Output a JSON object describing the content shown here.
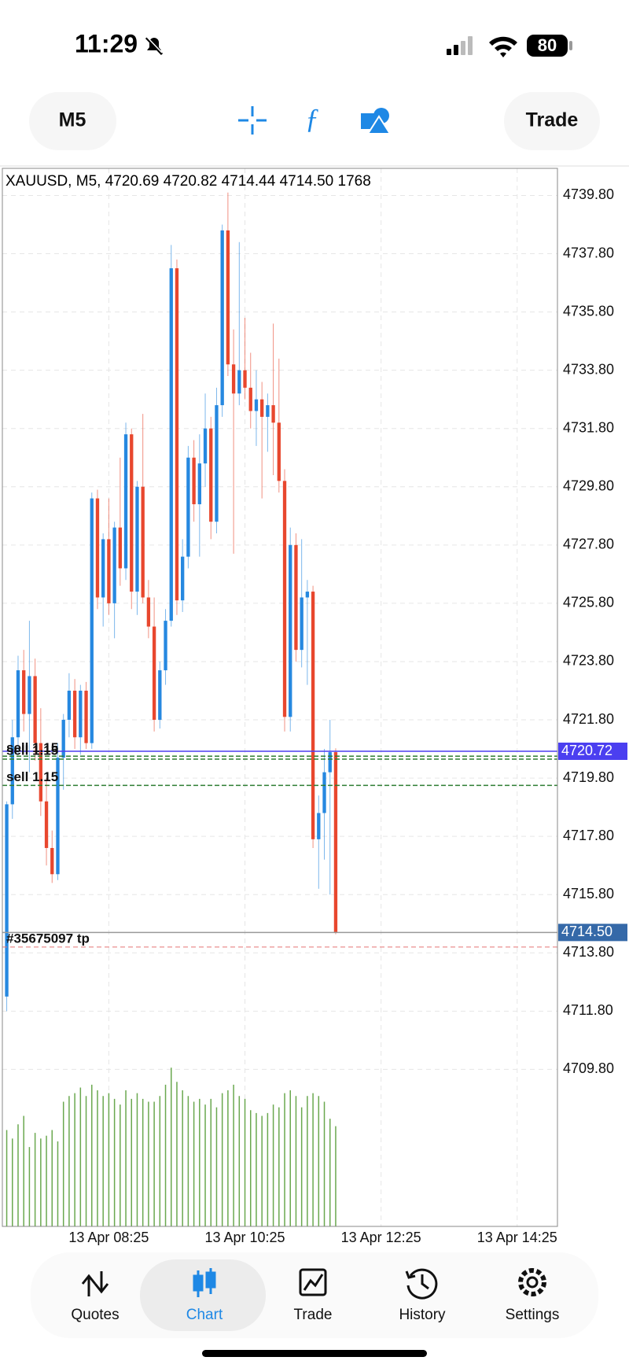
{
  "status_bar": {
    "time": "11:29",
    "battery": "80"
  },
  "toolbar": {
    "timeframe": "M5",
    "trade": "Trade"
  },
  "chart_data": {
    "type": "candlestick",
    "title": "XAUUSD, M5, 4720.69 4720.82 4714.44 4714.50 1768",
    "open": [
      4712.3,
      4718.9,
      4721.2,
      4723.5,
      4722.0,
      4723.3,
      4721.0,
      4719.0,
      4717.4,
      4716.5,
      4720.5,
      4721.8,
      4722.8,
      4721.2,
      4722.8,
      4721.0,
      4729.4,
      4726.0,
      4728.0,
      4725.8,
      4728.4,
      4727.0,
      4731.6,
      4726.2,
      4729.8,
      4726.0,
      4725.0,
      4721.8,
      4723.5,
      4725.2,
      4737.3,
      4725.9,
      4727.4,
      4730.8,
      4729.2,
      4730.6,
      4731.8,
      4728.6,
      4732.6,
      4738.6,
      4734.0,
      4733.0,
      4733.8,
      4733.2,
      4732.4,
      4732.8,
      4732.2,
      4732.6,
      4732.0,
      4730.0,
      4721.9,
      4727.8,
      4724.2,
      4726.0,
      4726.2,
      4717.7,
      4718.6,
      4720.0,
      4720.69
    ],
    "high": [
      4719.0,
      4721.8,
      4724.0,
      4724.2,
      4725.2,
      4723.9,
      4722.2,
      4719.8,
      4718.0,
      4721.0,
      4722.0,
      4723.4,
      4723.2,
      4723.0,
      4723.1,
      4729.6,
      4729.7,
      4728.2,
      4729.4,
      4728.6,
      4730.8,
      4732.0,
      4731.8,
      4730.0,
      4732.3,
      4726.6,
      4726.0,
      4723.8,
      4725.6,
      4738.1,
      4737.6,
      4728.0,
      4731.2,
      4731.4,
      4731.6,
      4733.0,
      4732.2,
      4733.2,
      4738.8,
      4739.9,
      4735.2,
      4738.2,
      4735.6,
      4734.4,
      4733.8,
      4733.4,
      4733.0,
      4735.4,
      4734.2,
      4730.4,
      4728.4,
      4728.2,
      4728.0,
      4726.6,
      4726.4,
      4719.2,
      4720.8,
      4721.8,
      4720.82
    ],
    "low": [
      4711.8,
      4718.4,
      4720.6,
      4721.4,
      4720.0,
      4720.4,
      4718.5,
      4716.8,
      4716.2,
      4716.3,
      4719.4,
      4721.2,
      4720.8,
      4720.6,
      4720.8,
      4720.8,
      4725.6,
      4725.0,
      4725.4,
      4724.6,
      4726.4,
      4726.6,
      4725.6,
      4725.4,
      4725.8,
      4724.6,
      4721.4,
      4721.5,
      4723.0,
      4725.0,
      4725.4,
      4725.5,
      4727.0,
      4728.6,
      4727.4,
      4729.8,
      4728.0,
      4728.2,
      4732.2,
      4733.6,
      4727.5,
      4732.6,
      4732.8,
      4731.8,
      4731.2,
      4729.4,
      4731.0,
      4730.2,
      4729.6,
      4721.4,
      4721.4,
      4723.8,
      4723.6,
      4723.0,
      4717.4,
      4716.0,
      4717.0,
      4715.8,
      4714.44
    ],
    "close": [
      4718.9,
      4721.2,
      4723.5,
      4722.0,
      4723.3,
      4721.0,
      4719.0,
      4717.4,
      4716.5,
      4720.5,
      4721.8,
      4722.8,
      4721.2,
      4722.8,
      4721.0,
      4729.4,
      4726.0,
      4728.0,
      4725.8,
      4728.4,
      4727.0,
      4731.6,
      4726.2,
      4729.8,
      4726.0,
      4725.0,
      4721.8,
      4723.5,
      4725.2,
      4737.3,
      4725.9,
      4727.4,
      4730.8,
      4729.2,
      4730.6,
      4731.8,
      4728.6,
      4732.6,
      4738.6,
      4734.0,
      4733.0,
      4733.8,
      4733.2,
      4732.4,
      4732.8,
      4732.2,
      4732.6,
      4732.0,
      4730.0,
      4721.9,
      4727.8,
      4724.2,
      4726.0,
      4726.2,
      4717.7,
      4718.6,
      4720.0,
      4720.69,
      4714.5
    ],
    "volume": [
      1700,
      1550,
      1800,
      1950,
      1400,
      1650,
      1550,
      1600,
      1700,
      1500,
      2200,
      2300,
      2350,
      2450,
      2300,
      2500,
      2400,
      2300,
      2350,
      2250,
      2150,
      2400,
      2250,
      2350,
      2250,
      2200,
      2200,
      2300,
      2500,
      2800,
      2550,
      2400,
      2300,
      2200,
      2250,
      2150,
      2250,
      2100,
      2350,
      2400,
      2500,
      2300,
      2250,
      2050,
      2000,
      1950,
      2000,
      2150,
      2100,
      2350,
      2400,
      2300,
      2100,
      2300,
      2350,
      2300,
      2200,
      1900,
      1768
    ],
    "up_color": "#2688e0",
    "down_color": "#e8472e",
    "volume_color": "#6aa84f",
    "xlim": [
      -0.77,
      97.1
    ],
    "xticks": [
      {
        "value": 18,
        "label": "13 Apr 08:25"
      },
      {
        "value": 42,
        "label": "13 Apr 10:25"
      },
      {
        "value": 66,
        "label": "13 Apr 12:25"
      },
      {
        "value": 90,
        "label": "13 Apr 14:25"
      }
    ],
    "ylim": [
      4704.41,
      4740.73
    ],
    "yticks": [
      {
        "value": 4739.8,
        "label": "4739.80"
      },
      {
        "value": 4737.8,
        "label": "4737.80"
      },
      {
        "value": 4735.8,
        "label": "4735.80"
      },
      {
        "value": 4733.8,
        "label": "4733.80"
      },
      {
        "value": 4731.8,
        "label": "4731.80"
      },
      {
        "value": 4729.8,
        "label": "4729.80"
      },
      {
        "value": 4727.8,
        "label": "4727.80"
      },
      {
        "value": 4725.8,
        "label": "4725.80"
      },
      {
        "value": 4723.8,
        "label": "4723.80"
      },
      {
        "value": 4721.8,
        "label": "4721.80"
      },
      {
        "value": 4719.8,
        "label": "4719.80"
      },
      {
        "value": 4717.8,
        "label": "4717.80"
      },
      {
        "value": 4715.8,
        "label": "4715.80"
      },
      {
        "value": 4713.8,
        "label": "4713.80"
      },
      {
        "value": 4711.8,
        "label": "4711.80"
      },
      {
        "value": 4709.8,
        "label": "4709.80"
      }
    ],
    "vlim": [
      0,
      18665
    ],
    "grid": true,
    "bid_line": {
      "value": 4720.72,
      "label": "4720.72",
      "color": "#4b3ff0"
    },
    "last_line": {
      "value": 4714.5,
      "label": "4714.50",
      "color": "#3569a8"
    },
    "orders": [
      {
        "label": "sell 1.15",
        "price": 4720.55
      },
      {
        "label": "sell 1.15",
        "price": 4720.45
      },
      {
        "label": "sell 1.15",
        "price": 4719.55
      }
    ],
    "take_profit": {
      "label": "#35675097 tp",
      "price": 4714.0
    }
  },
  "nav": {
    "items": [
      "Quotes",
      "Chart",
      "Trade",
      "History",
      "Settings"
    ],
    "selected": 1
  }
}
